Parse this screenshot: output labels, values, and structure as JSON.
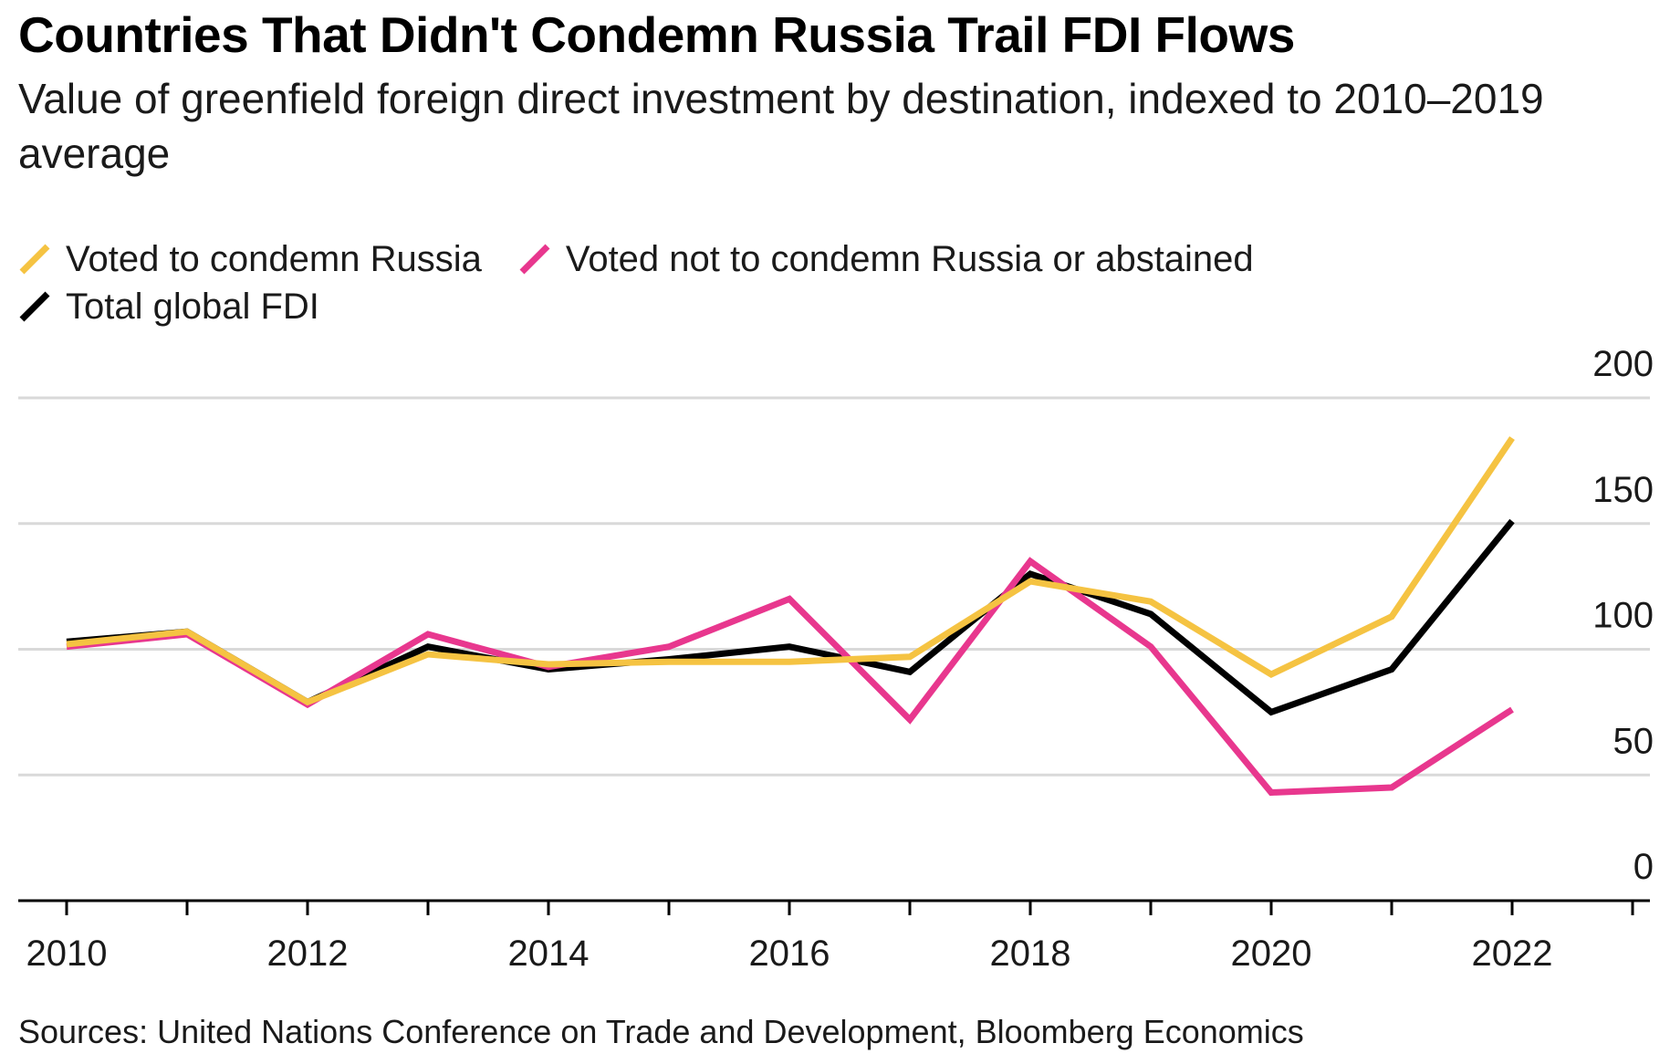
{
  "title": "Countries That Didn't Condemn Russia Trail FDI Flows",
  "subtitle": "Value of greenfield foreign direct investment by destination, indexed to 2010–2019 average",
  "source": "Sources: United Nations Conference on Trade and Development, Bloomberg Economics",
  "legend": {
    "condemn": "Voted to condemn Russia",
    "not_condemn": "Voted not to condemn Russia or abstained",
    "total": "Total global FDI"
  },
  "colors": {
    "condemn": "#F5C342",
    "not_condemn": "#E8378E",
    "total": "#000000",
    "grid": "#d9d9d9",
    "axis": "#000000"
  },
  "chart_data": {
    "type": "line",
    "x": [
      2010,
      2011,
      2012,
      2013,
      2014,
      2015,
      2016,
      2017,
      2018,
      2019,
      2020,
      2021,
      2022
    ],
    "x_ticks": [
      "2010",
      "2012",
      "2014",
      "2016",
      "2018",
      "2020",
      "2022"
    ],
    "y_ticks": [
      "0",
      "50",
      "100",
      "150",
      "200"
    ],
    "ylim": [
      0,
      200
    ],
    "xlim": [
      2010,
      2023.1
    ],
    "grid": true,
    "legend_position": "top-left",
    "y_axis_side": "right",
    "series": [
      {
        "key": "total",
        "name": "Total global FDI",
        "values": [
          103,
          107,
          79,
          101,
          92,
          96,
          101,
          91,
          130,
          114,
          75,
          92,
          151
        ]
      },
      {
        "key": "not_condemn",
        "name": "Voted not to condemn Russia or abstained",
        "values": [
          101,
          106,
          78,
          106,
          93,
          101,
          120,
          72,
          135,
          101,
          43,
          45,
          76
        ]
      },
      {
        "key": "condemn",
        "name": "Voted to condemn Russia",
        "values": [
          102,
          107,
          79,
          98,
          94,
          95,
          95,
          97,
          127,
          119,
          90,
          113,
          184
        ]
      }
    ]
  }
}
